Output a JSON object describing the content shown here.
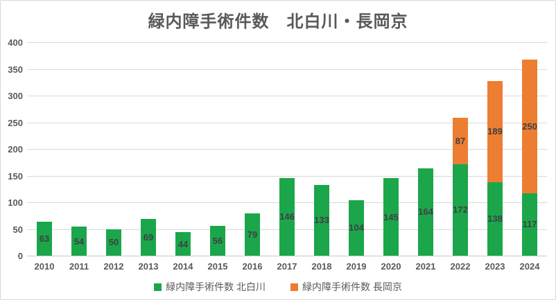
{
  "chart_data": {
    "type": "bar",
    "stacked": true,
    "title": "緑内障手術件数　北白川・長岡京",
    "categories": [
      "2010",
      "2011",
      "2012",
      "2013",
      "2014",
      "2015",
      "2016",
      "2017",
      "2018",
      "2019",
      "2020",
      "2021",
      "2022",
      "2023",
      "2024"
    ],
    "series": [
      {
        "name": "緑内障手術件数 北白川",
        "color": "#1BA64B",
        "values": [
          63,
          54,
          50,
          69,
          44,
          56,
          79,
          146,
          133,
          104,
          145,
          164,
          172,
          138,
          117
        ]
      },
      {
        "name": "緑内障手術件数 長岡京",
        "color": "#ED7D31",
        "values": [
          0,
          0,
          0,
          0,
          0,
          0,
          0,
          0,
          0,
          0,
          0,
          0,
          87,
          189,
          250
        ]
      }
    ],
    "ylim": [
      0,
      400
    ],
    "ytick_step": 50,
    "ytick_labels": [
      "0",
      "50",
      "100",
      "150",
      "200",
      "250",
      "300",
      "350",
      "400"
    ],
    "grid": true,
    "legend_position": "bottom",
    "xlabel": "",
    "ylabel": "",
    "data_labels": "inside-center",
    "label_color": "#404040",
    "axis_text_color": "#595959",
    "gridline_color": "#d9d9d9"
  }
}
